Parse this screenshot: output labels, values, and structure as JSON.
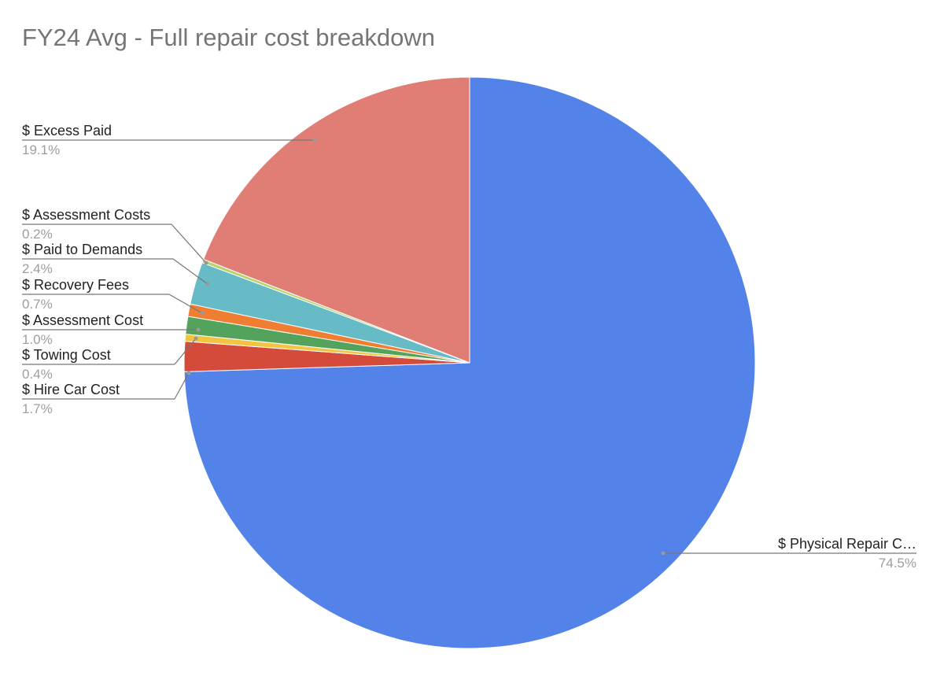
{
  "chart_data": {
    "type": "pie",
    "title": "FY24 Avg - Full repair cost breakdown",
    "start_angle_deg": 0,
    "direction": "clockwise",
    "slices": [
      {
        "label": "$ Physical Repair C…",
        "value": 74.5,
        "pct_label": "74.5%",
        "color": "#5383e8"
      },
      {
        "label": "$ Hire Car Cost",
        "value": 1.7,
        "pct_label": "1.7%",
        "color": "#d44b3c"
      },
      {
        "label": "$ Towing Cost",
        "value": 0.4,
        "pct_label": "0.4%",
        "color": "#f3c342"
      },
      {
        "label": "$ Assessment Cost",
        "value": 1.0,
        "pct_label": "1.0%",
        "color": "#54a35c"
      },
      {
        "label": "$ Recovery Fees",
        "value": 0.7,
        "pct_label": "0.7%",
        "color": "#ef7e32"
      },
      {
        "label": "$ Paid to Demands",
        "value": 2.4,
        "pct_label": "2.4%",
        "color": "#66bbc6"
      },
      {
        "label": "$ Assessment Costs",
        "value": 0.2,
        "pct_label": "0.2%",
        "color": "#b7d36a"
      },
      {
        "label": "$ Excess Paid",
        "value": 19.1,
        "pct_label": "19.1%",
        "color": "#e07e76"
      }
    ],
    "legend": "none",
    "labels": "outside-with-leader-lines"
  }
}
